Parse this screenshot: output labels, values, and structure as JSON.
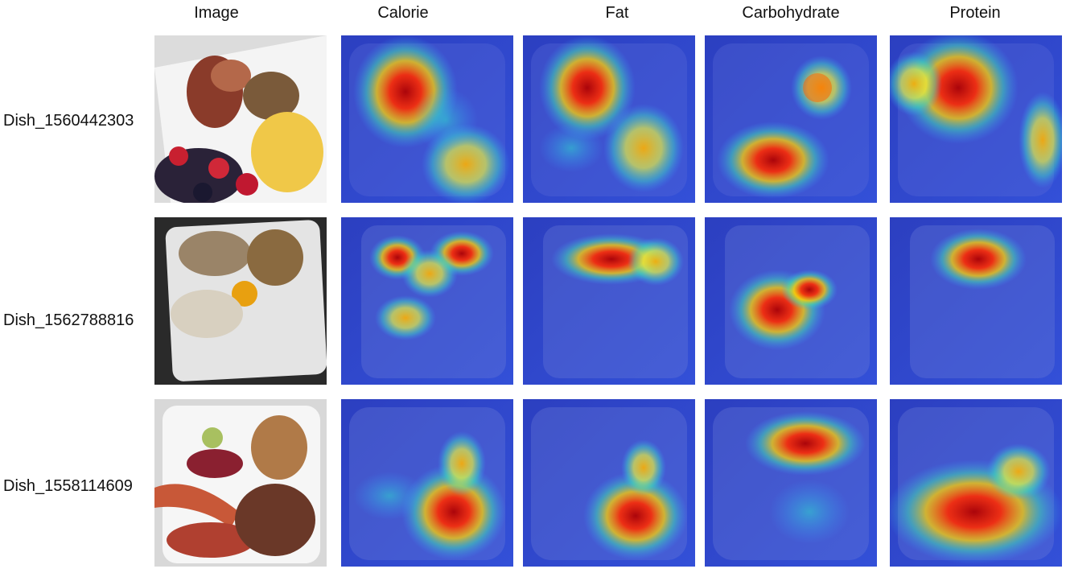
{
  "columns": [
    "Image",
    "Calorie",
    "Fat",
    "Carbohydrate",
    "Protein"
  ],
  "rows": [
    {
      "label": "Dish_1560442303"
    },
    {
      "label": "Dish_1562788816"
    },
    {
      "label": "Dish_1558114609"
    }
  ]
}
